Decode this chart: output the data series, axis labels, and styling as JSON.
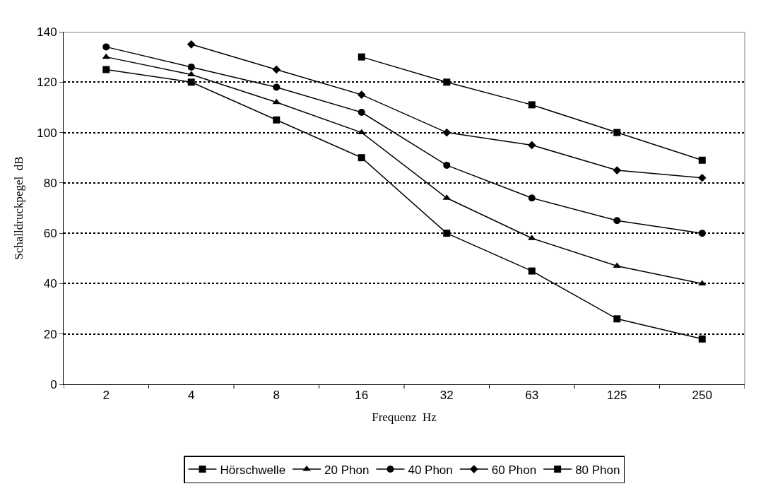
{
  "chart_data": {
    "type": "line",
    "xlabel": "Frequenz  Hz",
    "ylabel": "Schalldruckpegel  dB",
    "categories": [
      "2",
      "4",
      "8",
      "16",
      "32",
      "63",
      "125",
      "250"
    ],
    "series": [
      {
        "name": "Hörschwelle",
        "color": "#000000",
        "marker": "square",
        "values": [
          125,
          120,
          105,
          90,
          60,
          45,
          26,
          18
        ]
      },
      {
        "name": "20 Phon",
        "color": "#000000",
        "marker": "triangle",
        "values": [
          130,
          123,
          112,
          100,
          74,
          58,
          47,
          40
        ]
      },
      {
        "name": "40 Phon",
        "color": "#000000",
        "marker": "circle",
        "values": [
          134,
          126,
          118,
          108,
          87,
          74,
          65,
          60
        ]
      },
      {
        "name": "60 Phon",
        "color": "#000000",
        "marker": "diamond",
        "values": [
          null,
          135,
          125,
          115,
          100,
          95,
          85,
          82
        ]
      },
      {
        "name": "80 Phon",
        "color": "#000000",
        "marker": "square",
        "values": [
          null,
          null,
          null,
          130,
          120,
          111,
          100,
          89
        ]
      }
    ],
    "ylim": [
      0,
      140
    ],
    "yticks": [
      0,
      20,
      40,
      60,
      80,
      100,
      120,
      140
    ],
    "grid": "y",
    "legend": "bottom",
    "line_style": "solid"
  }
}
